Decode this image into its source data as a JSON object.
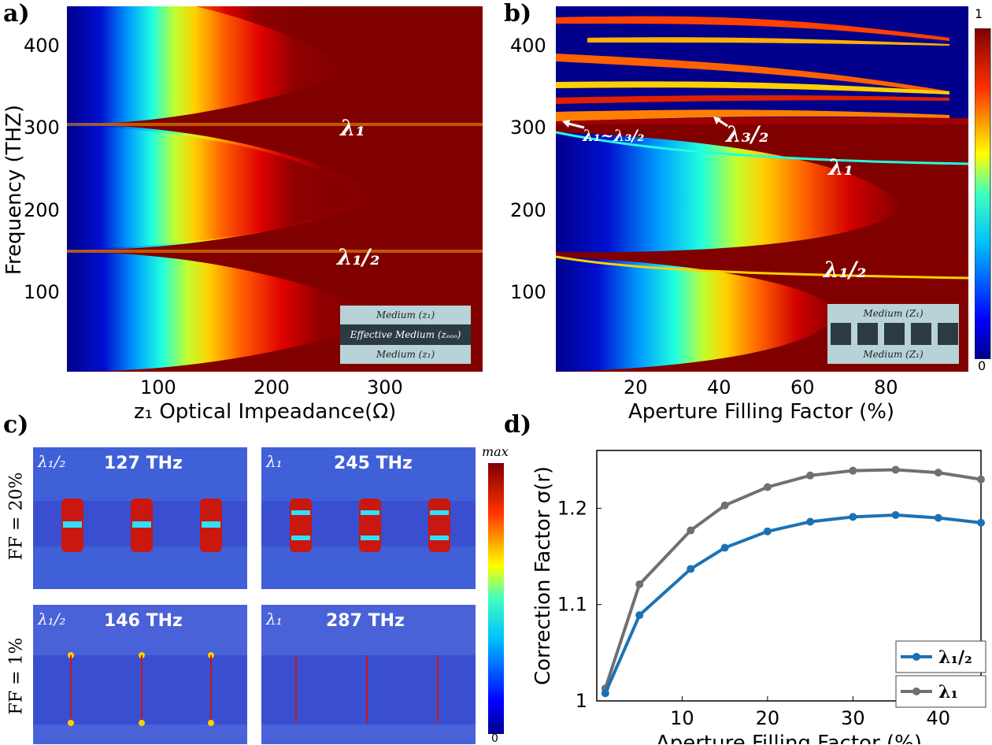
{
  "panels": {
    "a": {
      "label": "a)",
      "ylabel": "Frequency (THZ)",
      "xlabel": "z₁ Optical Impeadance(Ω)",
      "yticks": [
        "100",
        "200",
        "300",
        "400"
      ],
      "xticks": [
        "100",
        "200",
        "300"
      ],
      "annot_l1": "λ₁",
      "annot_lhalf": "λ₁/₂",
      "inset": {
        "top": "Medium (z₁)",
        "mid": "Effective Medium (zₑₒₒ)",
        "bot": "Medium (z₁)"
      }
    },
    "b": {
      "label": "b)",
      "xlabel": "Aperture Filling Factor (%)",
      "yticks": [
        "100",
        "200",
        "300",
        "400"
      ],
      "xticks": [
        "20",
        "40",
        "60",
        "80"
      ],
      "annot_l1": "λ₁",
      "annot_lhalf": "λ₁/₂",
      "annot_l32": "λ₃/₂",
      "annot_l1l32": "λ₁~λ₃/₂",
      "colorbar_max": "1",
      "colorbar_min": "0",
      "inset": {
        "top": "Medium (Z₁)",
        "bot": "Medium (Z₁)"
      }
    },
    "c": {
      "label": "c)",
      "colorbar_max": "max",
      "colorbar_min": "0",
      "row_labels": [
        "FF = 20%",
        "FF = 1%"
      ],
      "fields": [
        {
          "lam": "λ₁/₂",
          "freq": "127 THz"
        },
        {
          "lam": "λ₁",
          "freq": "245 THz"
        },
        {
          "lam": "λ₁/₂",
          "freq": "146 THz"
        },
        {
          "lam": "λ₁",
          "freq": "287 THz"
        }
      ]
    },
    "d": {
      "label": "d)"
    }
  },
  "chart_data": [
    {
      "type": "heatmap",
      "title": "a)",
      "xlabel": "z₁ Optical Impeadance(Ω)",
      "ylabel": "Frequency (THZ)",
      "xlim": [
        10,
        380
      ],
      "ylim": [
        0,
        450
      ],
      "colormap": "jet",
      "clim": [
        0,
        1
      ],
      "annotations": [
        "λ₁",
        "λ₁/₂"
      ]
    },
    {
      "type": "heatmap",
      "title": "b)",
      "xlabel": "Aperture Filling Factor (%)",
      "ylabel": "Frequency (THZ)",
      "xlim": [
        0,
        100
      ],
      "ylim": [
        0,
        450
      ],
      "colormap": "jet",
      "clim": [
        0,
        1
      ],
      "annotations": [
        "λ₁~λ₃/₂",
        "λ₃/₂",
        "λ₁",
        "λ₁/₂"
      ]
    },
    {
      "type": "line",
      "title": "d)",
      "xlabel": "Aperture Filling Factor (%)",
      "ylabel": "Correction Factor σ(r)",
      "xlim": [
        0,
        45
      ],
      "ylim": [
        1.0,
        1.26
      ],
      "xticks": [
        10,
        20,
        30,
        40
      ],
      "yticks": [
        1,
        1.1,
        1.2
      ],
      "ytick_labels": [
        "1",
        "1.1",
        "1.2"
      ],
      "x": [
        1,
        5,
        11,
        15,
        20,
        25,
        30,
        35,
        40,
        45
      ],
      "series": [
        {
          "name": "λ₁/₂",
          "color": "#1a72b5",
          "values": [
            1.008,
            1.089,
            1.137,
            1.159,
            1.176,
            1.186,
            1.191,
            1.193,
            1.19,
            1.185
          ]
        },
        {
          "name": "λ₁",
          "color": "#707070",
          "values": [
            1.013,
            1.121,
            1.177,
            1.203,
            1.222,
            1.234,
            1.239,
            1.24,
            1.237,
            1.23
          ]
        }
      ]
    }
  ]
}
